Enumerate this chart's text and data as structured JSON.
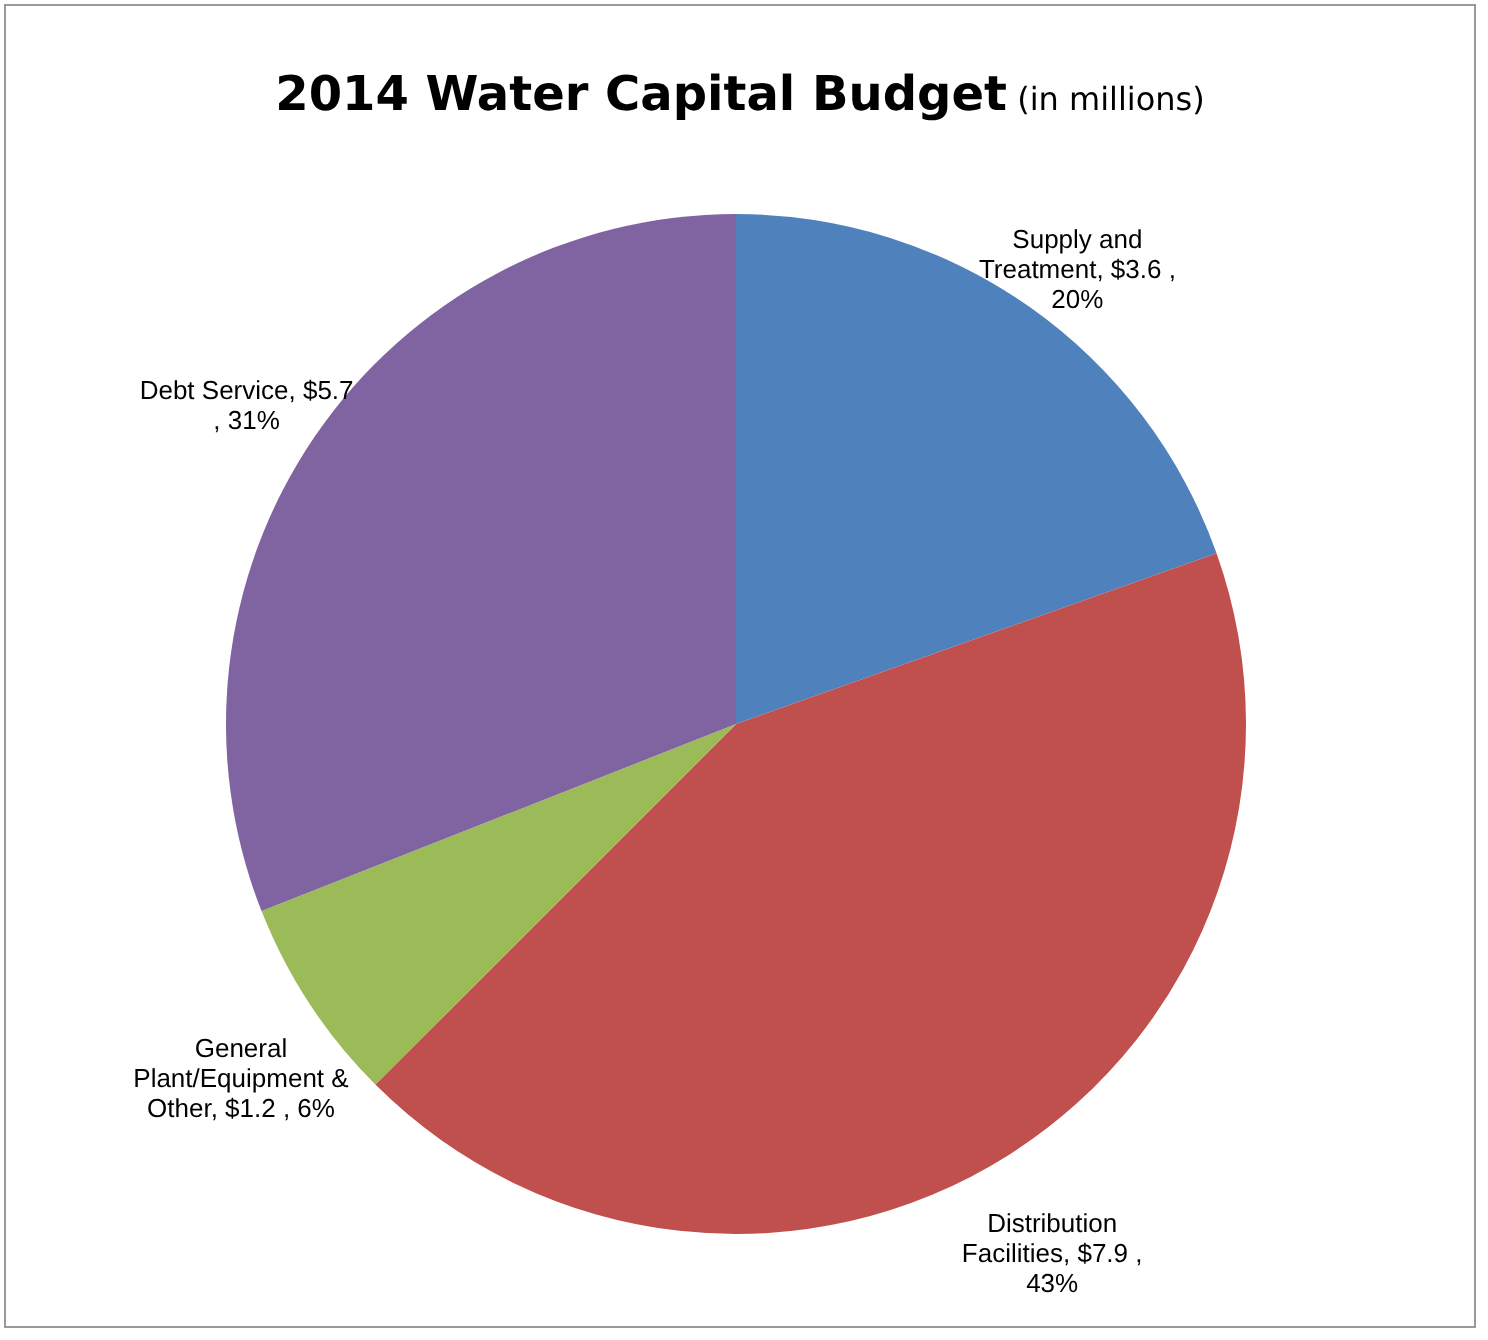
{
  "chart_data": {
    "type": "pie",
    "title": "2014 Water Capital Budget",
    "subtitle": "(in millions)",
    "categories": [
      "Supply and Treatment",
      "Distribution Facilities",
      "General Plant/Equipment & Other",
      "Debt Service"
    ],
    "values": [
      3.6,
      7.9,
      1.2,
      5.7
    ],
    "colors": [
      "#4f81bd",
      "#c0504d",
      "#9bbb59",
      "#8064a2"
    ],
    "value_labels": [
      ", $3.6 , 20%",
      ", $7.9 , 43%",
      ", $1.2 , 6%",
      ", $5.7 , 31%"
    ]
  }
}
